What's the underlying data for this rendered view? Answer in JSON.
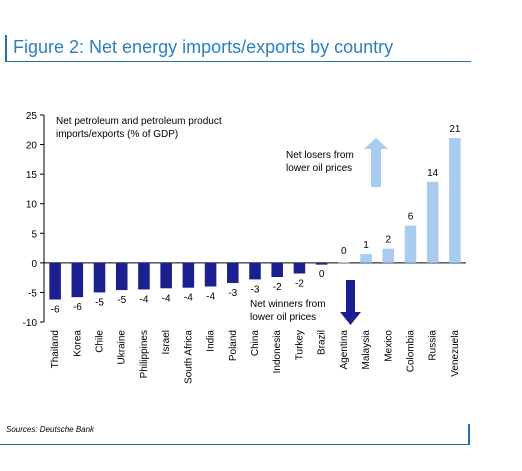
{
  "figure": {
    "title": "Figure 2: Net energy imports/exports by country",
    "source": "Sources: Deutsche Bank"
  },
  "chart_data": {
    "type": "bar",
    "ylim": [
      -10,
      25
    ],
    "yticks": [
      25,
      20,
      15,
      10,
      5,
      0,
      -5,
      -10
    ],
    "grid": false,
    "categories": [
      "Thailand",
      "Korea",
      "Chile",
      "Ukraine",
      "Philippines",
      "Israel",
      "South Africa",
      "India",
      "Poland",
      "China",
      "Indonesia",
      "Turkey",
      "Brazil",
      "Agentina",
      "Malaysia",
      "Mexico",
      "Colombia",
      "Russia",
      "Venezuela"
    ],
    "values": [
      -6.2,
      -5.8,
      -5.0,
      -4.6,
      -4.5,
      -4.3,
      -4.2,
      -4.0,
      -3.4,
      -2.8,
      -2.4,
      -1.8,
      -0.3,
      0.1,
      1.5,
      2.4,
      6.3,
      13.7,
      21.1
    ],
    "data_labels": [
      "-6",
      "-6",
      "-5",
      "-5",
      "-4",
      "-4",
      "-4",
      "-4",
      "-3",
      "-3",
      "-2",
      "-2",
      "0",
      "0",
      "1",
      "2",
      "6",
      "14",
      "21"
    ],
    "colors": {
      "importer": "#1b1f8f",
      "exporter": "#a7ccf0"
    },
    "annotations": {
      "ylabel_line1": "Net petroleum and petroleum product",
      "ylabel_line2": "imports/exports (% of GDP)",
      "losers_line1": "Net losers from",
      "losers_line2": "lower oil prices",
      "winners_line1": "Net winners from",
      "winners_line2": "lower oil prices"
    }
  }
}
